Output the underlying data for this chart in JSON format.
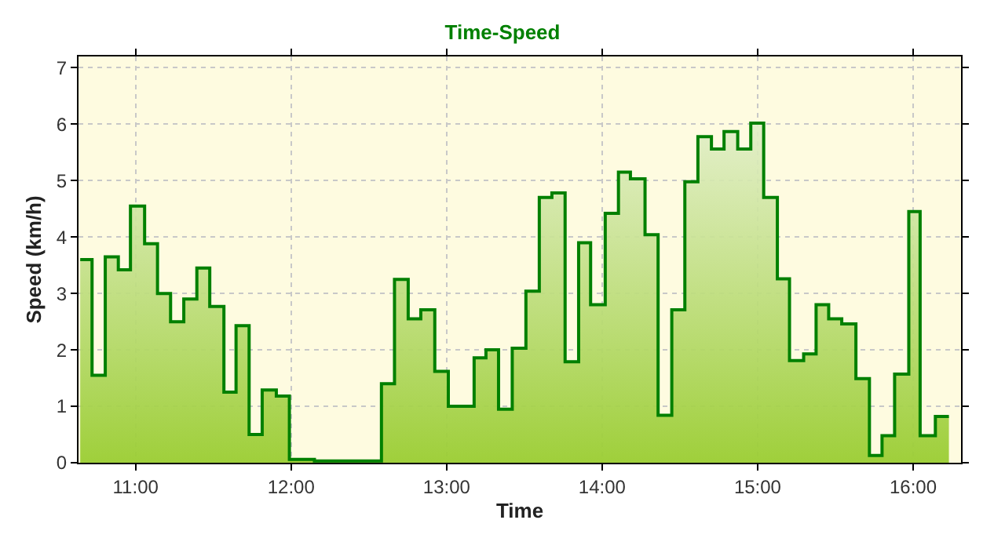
{
  "chart_data": {
    "type": "area",
    "title": "Time-Speed",
    "xlabel": "Time",
    "ylabel": "Speed (km/h)",
    "x": [
      10.644,
      10.72,
      10.72,
      10.805,
      10.805,
      10.889,
      10.889,
      10.967,
      10.967,
      11.058,
      11.058,
      11.141,
      11.141,
      11.225,
      11.225,
      11.31,
      11.31,
      11.394,
      11.394,
      11.477,
      11.477,
      11.568,
      11.568,
      11.646,
      11.646,
      11.73,
      11.73,
      11.814,
      11.814,
      11.905,
      11.905,
      11.989,
      11.989,
      12.15,
      12.15,
      12.581,
      12.581,
      12.665,
      12.665,
      12.753,
      12.753,
      12.834,
      12.834,
      12.924,
      12.924,
      13.011,
      13.011,
      13.177,
      13.177,
      13.253,
      13.253,
      13.334,
      13.334,
      13.422,
      13.422,
      13.51,
      13.51,
      13.596,
      13.596,
      13.677,
      13.677,
      13.762,
      13.762,
      13.849,
      13.849,
      13.926,
      13.926,
      14.02,
      14.02,
      14.105,
      14.105,
      14.182,
      14.182,
      14.276,
      14.276,
      14.36,
      14.36,
      14.448,
      14.448,
      14.532,
      14.532,
      14.616,
      14.616,
      14.703,
      14.703,
      14.784,
      14.784,
      14.872,
      14.872,
      14.956,
      14.956,
      15.039,
      15.039,
      15.127,
      15.127,
      15.205,
      15.205,
      15.296,
      15.296,
      15.376,
      15.376,
      15.457,
      15.457,
      15.541,
      15.541,
      15.632,
      15.632,
      15.719,
      15.719,
      15.8,
      15.8,
      15.881,
      15.881,
      15.972,
      15.972,
      16.045,
      16.045,
      16.143,
      16.143,
      16.23
    ],
    "series": [
      {
        "color": "#008000",
        "values": [
          3.6,
          3.6,
          1.55,
          1.55,
          3.65,
          3.65,
          3.42,
          3.42,
          4.55,
          4.55,
          3.88,
          3.88,
          3.0,
          3.0,
          2.5,
          2.5,
          2.9,
          2.9,
          3.45,
          3.45,
          2.77,
          2.77,
          1.25,
          1.25,
          2.43,
          2.43,
          0.5,
          0.5,
          1.29,
          1.29,
          1.18,
          1.18,
          0.06,
          0.06,
          0.03,
          0.03,
          1.4,
          1.4,
          3.25,
          3.25,
          2.55,
          2.55,
          2.71,
          2.71,
          1.62,
          1.62,
          1.0,
          1.0,
          1.86,
          1.86,
          2.0,
          2.0,
          0.95,
          0.95,
          2.03,
          2.03,
          3.04,
          3.04,
          4.7,
          4.7,
          4.78,
          4.78,
          1.79,
          1.79,
          3.9,
          3.9,
          2.8,
          2.8,
          4.42,
          4.42,
          5.15,
          5.15,
          5.03,
          5.03,
          4.04,
          4.04,
          0.84,
          0.84,
          2.71,
          2.71,
          4.98,
          4.98,
          5.78,
          5.78,
          5.56,
          5.56,
          5.87,
          5.87,
          5.56,
          5.56,
          6.02,
          6.02,
          4.7,
          4.7,
          3.26,
          3.26,
          1.81,
          1.81,
          1.93,
          1.93,
          2.8,
          2.8,
          2.55,
          2.55,
          2.46,
          2.46,
          1.49,
          1.49,
          0.13,
          0.13,
          0.48,
          0.48,
          1.57,
          1.57,
          4.45,
          4.45,
          0.48,
          0.48,
          0.82,
          0.82
        ]
      }
    ],
    "xlim": [
      10.633,
      16.308
    ],
    "xticks": [
      {
        "value": 11,
        "label": "11:00"
      },
      {
        "value": 12,
        "label": "12:00"
      },
      {
        "value": 13,
        "label": "13:00"
      },
      {
        "value": 14,
        "label": "14:00"
      },
      {
        "value": 15,
        "label": "15:00"
      },
      {
        "value": 16,
        "label": "16:00"
      }
    ],
    "ylim": [
      0,
      7.2
    ],
    "yticks": [
      0,
      1,
      2,
      3,
      4,
      5,
      6,
      7
    ],
    "grid": true
  }
}
